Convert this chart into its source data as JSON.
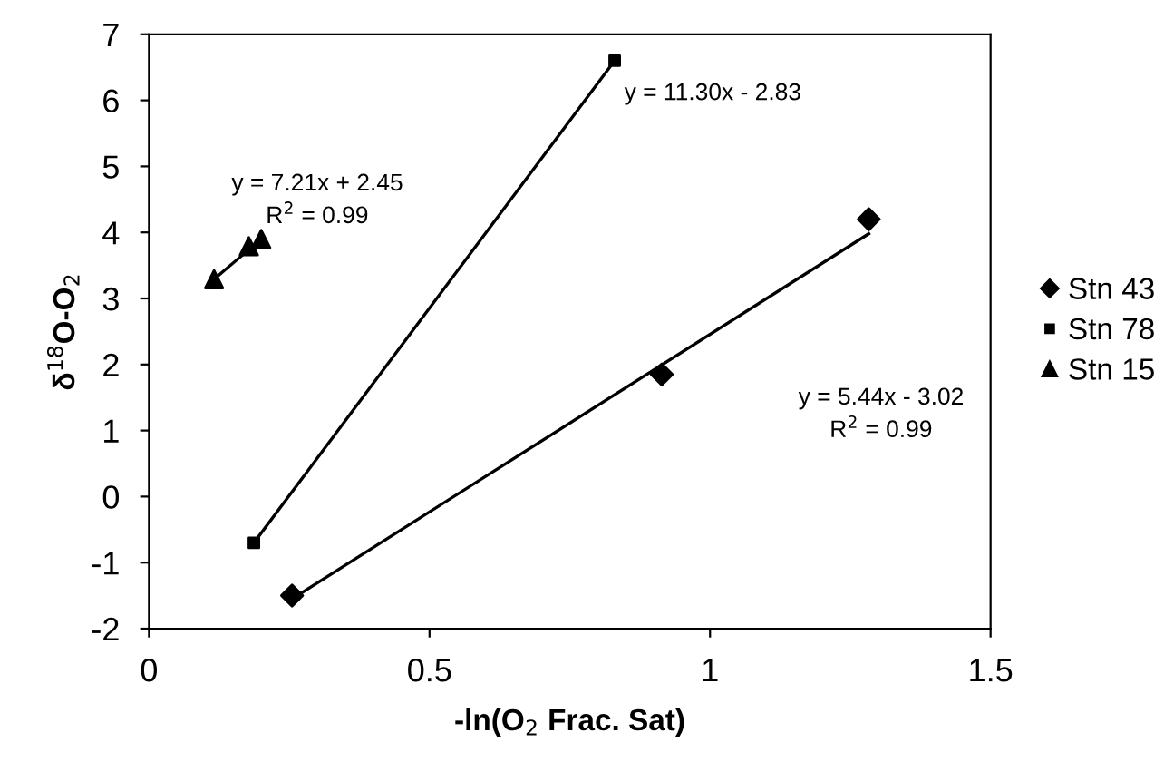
{
  "chart_data": {
    "type": "scatter",
    "xlabel": "-ln(O$_{2}$ Frac. Sat)",
    "ylabel": "δ$^{18}$O-O$_{2}$",
    "xlim": [
      0,
      1.5
    ],
    "xticks": [
      0,
      0.5,
      1,
      1.5
    ],
    "ylim": [
      -2,
      7
    ],
    "yticks": [
      -2,
      -1,
      0,
      1,
      2,
      3,
      4,
      5,
      6,
      7
    ],
    "grid": false,
    "legend": "right",
    "series": [
      {
        "name": "Stn 43",
        "color": "#000000",
        "marker": "diamond",
        "x": [
          0.255,
          0.914,
          1.283
        ],
        "values": [
          -1.5,
          1.85,
          4.2
        ]
      },
      {
        "name": "Stn 78",
        "color": "#000000",
        "marker": "square",
        "x": [
          0.187,
          0.83
        ],
        "values": [
          -0.7,
          6.6
        ]
      },
      {
        "name": "Stn 15",
        "color": "#000000",
        "marker": "triangle",
        "x": [
          0.116,
          0.178,
          0.2
        ],
        "values": [
          3.29,
          3.79,
          3.9
        ]
      },
      {
        "type": "line",
        "color": "#000000",
        "x": [
          0.255,
          1.283
        ],
        "values": [
          -1.55,
          3.98
        ]
      },
      {
        "type": "line",
        "color": "#000000",
        "x": [
          0.187,
          0.83
        ],
        "values": [
          -0.7,
          6.6
        ]
      },
      {
        "type": "line",
        "color": "#000000",
        "x": [
          0.116,
          0.2
        ],
        "values": [
          3.29,
          3.9
        ]
      }
    ],
    "annotations": [
      "y = 7.21x + 2.45\nR$^{2}$ = 0.99",
      "y = 11.30x - 2.83",
      "y = 5.44x - 3.02\nR$^{2}$ = 0.99"
    ]
  }
}
